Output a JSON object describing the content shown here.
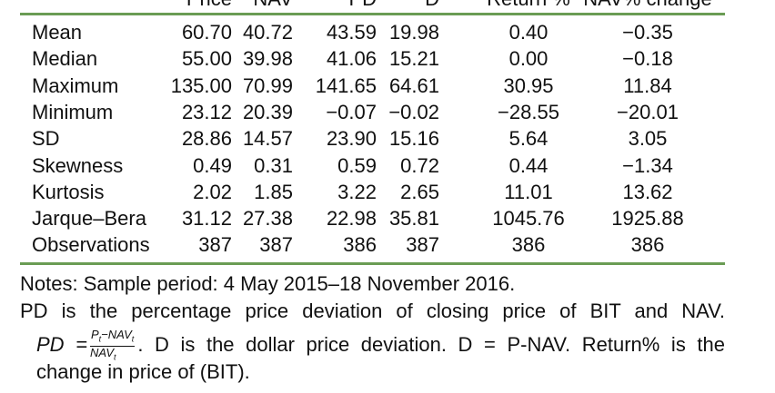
{
  "table": {
    "header": [
      "Price",
      "NAV",
      "PD",
      "D",
      "Return %",
      "NAV% change"
    ],
    "rows": [
      [
        "Mean",
        "60.70",
        "40.72",
        "43.59",
        "19.98",
        "0.40",
        "−0.35"
      ],
      [
        "Median",
        "55.00",
        "39.98",
        "41.06",
        "15.21",
        "0.00",
        "−0.18"
      ],
      [
        "Maximum",
        "135.00",
        "70.99",
        "141.65",
        "64.61",
        "30.95",
        "11.84"
      ],
      [
        "Minimum",
        "23.12",
        "20.39",
        "−0.07",
        "−0.02",
        "−28.55",
        "−20.01"
      ],
      [
        "SD",
        "28.86",
        "14.57",
        "23.90",
        "15.16",
        "5.64",
        "3.05"
      ],
      [
        "Skewness",
        "0.49",
        "0.31",
        "0.59",
        "0.72",
        "0.44",
        "−1.34"
      ],
      [
        "Kurtosis",
        "2.02",
        "1.85",
        "3.22",
        "2.65",
        "11.01",
        "13.62"
      ],
      [
        "Jarque–Bera",
        "31.12",
        "27.38",
        "22.98",
        "35.81",
        "1045.76",
        "1925.88"
      ],
      [
        "Observations",
        "387",
        "387",
        "386",
        "387",
        "386",
        "386"
      ]
    ]
  },
  "notes": {
    "sample": "Notes: Sample period: 4 May 2015–18 November 2016.",
    "pd": "PD is the percentage price deviation of closing price of BIT and NAV.",
    "formula": {
      "lhs": "PD =",
      "num": [
        "P",
        "t",
        "−NAV",
        "t"
      ],
      "den": [
        "NAV",
        "t"
      ]
    },
    "rest": ". D is the dollar price deviation. D = P-NAV. Return% is the",
    "last": "change in price of (BIT)."
  }
}
